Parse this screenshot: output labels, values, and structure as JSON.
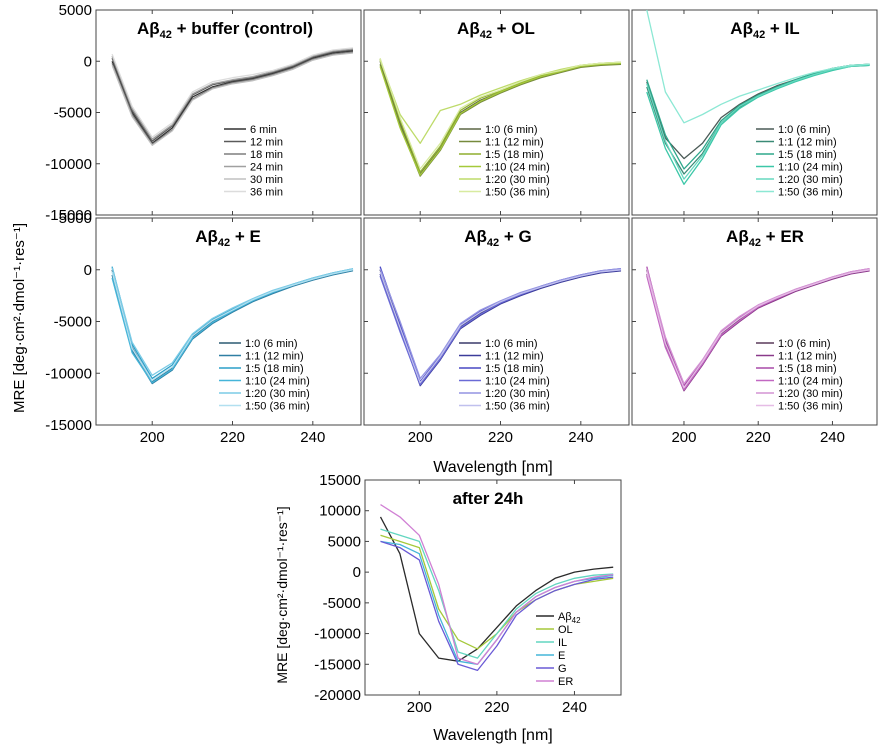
{
  "figure": {
    "ylabel_main": "MRE [deg·cm²·dmol⁻¹·res⁻¹]",
    "xlabel_main": "Wavelength [nm]",
    "ylabel_bottom": "MRE [deg·cm²·dmol⁻¹·res⁻¹]",
    "xlabel_bottom": "Wavelength [nm]"
  },
  "chart_data": [
    {
      "id": "p1",
      "type": "line",
      "title_main": "Aβ",
      "title_sub": "42",
      "title_rest": " + buffer (control)",
      "xlim": [
        186,
        252
      ],
      "ylim": [
        -15000,
        5000
      ],
      "yticks": [
        "5000",
        "0",
        "-5000",
        "-10000",
        "-15000"
      ],
      "xticks": [
        "200",
        "220",
        "240"
      ],
      "x": [
        190,
        195,
        200,
        205,
        210,
        215,
        220,
        225,
        230,
        235,
        240,
        245,
        250
      ],
      "series": [
        {
          "name": "6 min",
          "color": "#303030",
          "values": [
            0,
            -5000,
            -8000,
            -6500,
            -3500,
            -2500,
            -2000,
            -1700,
            -1200,
            -600,
            300,
            800,
            1000
          ]
        },
        {
          "name": "12 min",
          "color": "#5a5a5a",
          "values": [
            300,
            -4800,
            -7800,
            -6300,
            -3300,
            -2300,
            -1900,
            -1600,
            -1100,
            -500,
            400,
            900,
            1100
          ]
        },
        {
          "name": "18 min",
          "color": "#7e7e7e",
          "values": [
            -200,
            -5200,
            -8100,
            -6700,
            -3700,
            -2600,
            -2100,
            -1800,
            -1300,
            -700,
            200,
            700,
            900
          ]
        },
        {
          "name": "24 min",
          "color": "#a0a0a0",
          "values": [
            500,
            -4600,
            -7600,
            -6200,
            -3200,
            -2200,
            -1800,
            -1500,
            -1000,
            -400,
            500,
            1000,
            1200
          ]
        },
        {
          "name": "30 min",
          "color": "#c0c0c0",
          "values": [
            -400,
            -5400,
            -8200,
            -6800,
            -3800,
            -2700,
            -2200,
            -1900,
            -1400,
            -800,
            100,
            600,
            800
          ]
        },
        {
          "name": "36 min",
          "color": "#dcdcdc",
          "values": [
            700,
            -4400,
            -7400,
            -6000,
            -3000,
            -2000,
            -1600,
            -1300,
            -900,
            -300,
            600,
            1100,
            1300
          ]
        }
      ]
    },
    {
      "id": "p2",
      "type": "line",
      "title_main": "Aβ",
      "title_sub": "42",
      "title_rest": " + OL",
      "xlim": [
        186,
        252
      ],
      "ylim": [
        -15000,
        5000
      ],
      "yticks": [],
      "xticks": [
        "200",
        "220",
        "240"
      ],
      "x": [
        190,
        195,
        200,
        205,
        210,
        215,
        220,
        225,
        230,
        235,
        240,
        245,
        250
      ],
      "series": [
        {
          "name": "1:0 (6 min)",
          "color": "#5c6644",
          "values": [
            0,
            -6000,
            -11000,
            -8500,
            -5000,
            -3800,
            -3000,
            -2200,
            -1500,
            -1000,
            -500,
            -300,
            -200
          ]
        },
        {
          "name": "1:1 (12 min)",
          "color": "#768a3c",
          "values": [
            -300,
            -6300,
            -11200,
            -8700,
            -5200,
            -4000,
            -3100,
            -2300,
            -1600,
            -1100,
            -600,
            -400,
            -300
          ]
        },
        {
          "name": "1:5 (18 min)",
          "color": "#8fae2e",
          "values": [
            200,
            -5800,
            -10800,
            -8300,
            -4800,
            -3600,
            -2900,
            -2100,
            -1400,
            -900,
            -400,
            -200,
            -100
          ]
        },
        {
          "name": "1:10 (24 min)",
          "color": "#a5c93a",
          "values": [
            -500,
            -6500,
            -11100,
            -8600,
            -5100,
            -3900,
            -3000,
            -2200,
            -1500,
            -1000,
            -500,
            -300,
            -200
          ]
        },
        {
          "name": "1:20 (30 min)",
          "color": "#bedb6a",
          "values": [
            100,
            -5200,
            -8000,
            -4800,
            -4200,
            -3300,
            -2600,
            -1900,
            -1300,
            -800,
            -400,
            -200,
            -100
          ]
        },
        {
          "name": "1:50 (36 min)",
          "color": "#d8eba0",
          "values": [
            300,
            -5500,
            -10500,
            -8000,
            -4600,
            -3500,
            -2800,
            -2000,
            -1300,
            -900,
            -400,
            -200,
            -100
          ]
        }
      ]
    },
    {
      "id": "p3",
      "type": "line",
      "title_main": "Aβ",
      "title_sub": "42",
      "title_rest": " + IL",
      "xlim": [
        186,
        252
      ],
      "ylim": [
        -15000,
        5000
      ],
      "yticks": [],
      "xticks": [
        "200",
        "220",
        "240"
      ],
      "x": [
        190,
        195,
        200,
        205,
        210,
        215,
        220,
        225,
        230,
        235,
        240,
        245,
        250
      ],
      "series": [
        {
          "name": "1:0 (6 min)",
          "color": "#4a5a56",
          "values": [
            -2000,
            -7500,
            -9500,
            -8000,
            -5500,
            -4200,
            -3200,
            -2400,
            -1800,
            -1200,
            -700,
            -400,
            -300
          ]
        },
        {
          "name": "1:1 (12 min)",
          "color": "#3a8a76",
          "values": [
            -2500,
            -8000,
            -11000,
            -9000,
            -6000,
            -4500,
            -3400,
            -2600,
            -1900,
            -1300,
            -800,
            -500,
            -400
          ]
        },
        {
          "name": "1:5 (18 min)",
          "color": "#2ea88c",
          "values": [
            -1800,
            -7200,
            -10500,
            -8600,
            -5800,
            -4300,
            -3300,
            -2500,
            -1800,
            -1200,
            -700,
            -400,
            -300
          ]
        },
        {
          "name": "1:10 (24 min)",
          "color": "#3cc7a8",
          "values": [
            -3000,
            -8500,
            -12000,
            -9500,
            -6200,
            -4600,
            -3500,
            -2700,
            -2000,
            -1400,
            -900,
            -500,
            -400
          ]
        },
        {
          "name": "1:20 (30 min)",
          "color": "#66d8bf",
          "values": [
            -2200,
            -7800,
            -11500,
            -9200,
            -6000,
            -4400,
            -3400,
            -2600,
            -1900,
            -1300,
            -800,
            -500,
            -300
          ]
        },
        {
          "name": "1:50 (36 min)",
          "color": "#8ce8d4",
          "values": [
            5000,
            -3000,
            -6000,
            -5200,
            -4200,
            -3400,
            -2800,
            -2200,
            -1600,
            -1100,
            -700,
            -400,
            -300
          ]
        }
      ]
    },
    {
      "id": "p4",
      "type": "line",
      "title_main": "Aβ",
      "title_sub": "42",
      "title_rest": " + E",
      "xlim": [
        186,
        252
      ],
      "ylim": [
        -15000,
        5000
      ],
      "yticks": [
        "5000",
        "0",
        "-5000",
        "-10000",
        "-15000"
      ],
      "xticks": [
        "200",
        "220",
        "240"
      ],
      "x": [
        190,
        195,
        200,
        205,
        210,
        215,
        220,
        225,
        230,
        235,
        240,
        245,
        250
      ],
      "series": [
        {
          "name": "1:0 (6 min)",
          "color": "#2c5a72",
          "values": [
            0,
            -7500,
            -10800,
            -9500,
            -6500,
            -5000,
            -4000,
            -3000,
            -2200,
            -1500,
            -900,
            -400,
            0
          ]
        },
        {
          "name": "1:1 (12 min)",
          "color": "#2f7fa3",
          "values": [
            -500,
            -7800,
            -11000,
            -9700,
            -6700,
            -5200,
            -4100,
            -3100,
            -2300,
            -1600,
            -1000,
            -500,
            -100
          ]
        },
        {
          "name": "1:5 (18 min)",
          "color": "#2b9fc8",
          "values": [
            300,
            -7200,
            -10500,
            -9200,
            -6300,
            -4800,
            -3800,
            -2900,
            -2100,
            -1400,
            -800,
            -300,
            100
          ]
        },
        {
          "name": "1:10 (24 min)",
          "color": "#45b5d9",
          "values": [
            -800,
            -8000,
            -10900,
            -9600,
            -6600,
            -5100,
            -4000,
            -3000,
            -2200,
            -1500,
            -900,
            -400,
            0
          ]
        },
        {
          "name": "1:20 (30 min)",
          "color": "#7ccbe6",
          "values": [
            200,
            -7000,
            -10200,
            -9000,
            -6200,
            -4700,
            -3700,
            -2800,
            -2000,
            -1400,
            -800,
            -300,
            100
          ]
        },
        {
          "name": "1:50 (36 min)",
          "color": "#b2e0f0",
          "values": [
            -200,
            -7600,
            -10700,
            -9400,
            -6400,
            -4900,
            -3900,
            -2900,
            -2100,
            -1500,
            -900,
            -400,
            0
          ]
        }
      ]
    },
    {
      "id": "p5",
      "type": "line",
      "title_main": "Aβ",
      "title_sub": "42",
      "title_rest": " + G",
      "xlim": [
        186,
        252
      ],
      "ylim": [
        -15000,
        5000
      ],
      "yticks": [],
      "xticks": [
        "200",
        "220",
        "240"
      ],
      "x": [
        190,
        195,
        200,
        205,
        210,
        215,
        220,
        225,
        230,
        235,
        240,
        245,
        250
      ],
      "series": [
        {
          "name": "1:0 (6 min)",
          "color": "#3a3a6a",
          "values": [
            0,
            -5500,
            -11000,
            -8500,
            -5500,
            -4200,
            -3200,
            -2400,
            -1700,
            -1100,
            -600,
            -200,
            0
          ]
        },
        {
          "name": "1:1 (12 min)",
          "color": "#3c3c9a",
          "values": [
            -400,
            -5800,
            -11200,
            -8700,
            -5700,
            -4400,
            -3300,
            -2500,
            -1800,
            -1200,
            -700,
            -300,
            -100
          ]
        },
        {
          "name": "1:5 (18 min)",
          "color": "#4848c4",
          "values": [
            300,
            -5200,
            -10800,
            -8300,
            -5300,
            -4000,
            -3100,
            -2300,
            -1600,
            -1000,
            -500,
            -100,
            100
          ]
        },
        {
          "name": "1:10 (24 min)",
          "color": "#6a6ad6",
          "values": [
            -600,
            -6000,
            -11100,
            -8600,
            -5600,
            -4300,
            -3200,
            -2400,
            -1700,
            -1100,
            -600,
            -200,
            0
          ]
        },
        {
          "name": "1:20 (30 min)",
          "color": "#9494e2",
          "values": [
            100,
            -5000,
            -10500,
            -8200,
            -5200,
            -3900,
            -3000,
            -2200,
            -1600,
            -1000,
            -500,
            -100,
            100
          ]
        },
        {
          "name": "1:50 (36 min)",
          "color": "#c0c0ee",
          "values": [
            -200,
            -5600,
            -10900,
            -8400,
            -5400,
            -4100,
            -3100,
            -2300,
            -1700,
            -1100,
            -600,
            -200,
            0
          ]
        }
      ]
    },
    {
      "id": "p6",
      "type": "line",
      "title_main": "Aβ",
      "title_sub": "42",
      "title_rest": " + ER",
      "xlim": [
        186,
        252
      ],
      "ylim": [
        -15000,
        5000
      ],
      "yticks": [],
      "xticks": [
        "200",
        "220",
        "240"
      ],
      "x": [
        190,
        195,
        200,
        205,
        210,
        215,
        220,
        225,
        230,
        235,
        240,
        245,
        250
      ],
      "series": [
        {
          "name": "1:0 (6 min)",
          "color": "#5a3a5a",
          "values": [
            0,
            -7000,
            -11500,
            -9000,
            -6200,
            -4800,
            -3600,
            -2800,
            -2000,
            -1400,
            -800,
            -300,
            0
          ]
        },
        {
          "name": "1:1 (12 min)",
          "color": "#8a3a8a",
          "values": [
            -400,
            -7300,
            -11700,
            -9200,
            -6400,
            -5000,
            -3700,
            -2900,
            -2100,
            -1500,
            -900,
            -400,
            -100
          ]
        },
        {
          "name": "1:5 (18 min)",
          "color": "#a94aa9",
          "values": [
            300,
            -6700,
            -11200,
            -8800,
            -6000,
            -4600,
            -3500,
            -2700,
            -1900,
            -1300,
            -700,
            -200,
            100
          ]
        },
        {
          "name": "1:10 (24 min)",
          "color": "#c268c2",
          "values": [
            -600,
            -7500,
            -11600,
            -9100,
            -6300,
            -4900,
            -3600,
            -2800,
            -2000,
            -1400,
            -800,
            -300,
            0
          ]
        },
        {
          "name": "1:20 (30 min)",
          "color": "#d494d4",
          "values": [
            100,
            -6500,
            -11000,
            -8700,
            -5900,
            -4500,
            -3400,
            -2600,
            -1900,
            -1300,
            -700,
            -200,
            100
          ]
        },
        {
          "name": "1:50 (36 min)",
          "color": "#e6bce6",
          "values": [
            -200,
            -7100,
            -11400,
            -8900,
            -6100,
            -4700,
            -3500,
            -2700,
            -2000,
            -1400,
            -800,
            -300,
            0
          ]
        }
      ]
    },
    {
      "id": "p7",
      "type": "line",
      "title_main": "after 24h",
      "title_sub": "",
      "title_rest": "",
      "xlim": [
        186,
        252
      ],
      "ylim": [
        -20000,
        15000
      ],
      "yticks": [
        "15000",
        "10000",
        "5000",
        "0",
        "-5000",
        "-10000",
        "-15000",
        "-20000"
      ],
      "xticks": [
        "200",
        "220",
        "240"
      ],
      "x": [
        190,
        195,
        200,
        205,
        210,
        215,
        220,
        225,
        230,
        235,
        240,
        245,
        250
      ],
      "series": [
        {
          "name": "Aβ",
          "name_sub": "42",
          "color": "#2a2a2a",
          "values": [
            9000,
            3000,
            -10000,
            -14000,
            -14500,
            -12500,
            -9000,
            -5500,
            -3000,
            -1000,
            0,
            500,
            800
          ]
        },
        {
          "name": "OL",
          "color": "#a5c93a",
          "values": [
            6000,
            5000,
            4000,
            -6000,
            -11000,
            -12500,
            -10000,
            -6500,
            -4500,
            -3000,
            -2000,
            -1500,
            -1000
          ]
        },
        {
          "name": "IL",
          "color": "#62d6c0",
          "values": [
            7000,
            6000,
            5000,
            -3000,
            -13000,
            -14000,
            -10000,
            -6000,
            -3500,
            -2000,
            -1000,
            -500,
            -300
          ]
        },
        {
          "name": "E",
          "color": "#45b5d9",
          "values": [
            5000,
            4500,
            3000,
            -7000,
            -14500,
            -15000,
            -11000,
            -6500,
            -4000,
            -2500,
            -1500,
            -1000,
            -500
          ]
        },
        {
          "name": "G",
          "color": "#6a5ad6",
          "values": [
            5000,
            4000,
            2000,
            -8000,
            -15000,
            -16000,
            -12000,
            -7000,
            -4500,
            -3000,
            -2000,
            -1200,
            -800
          ]
        },
        {
          "name": "ER",
          "color": "#d080d4",
          "values": [
            11000,
            9000,
            6000,
            -2000,
            -14000,
            -15000,
            -11000,
            -6500,
            -4000,
            -2500,
            -1500,
            -800,
            -400
          ]
        }
      ]
    }
  ]
}
